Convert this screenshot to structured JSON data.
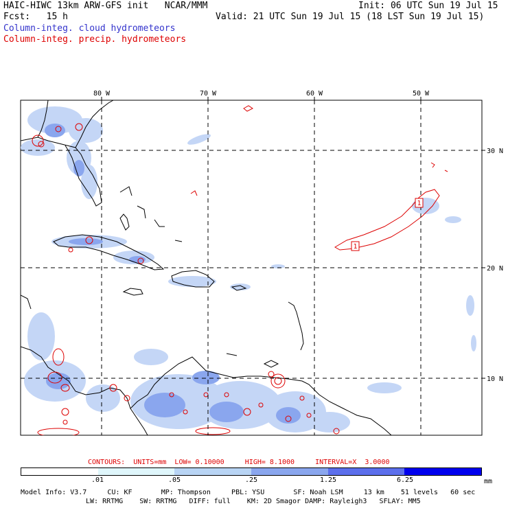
{
  "header": {
    "title": "HAIC-HIWC 13km ARW-GFS init   NCAR/MMM",
    "init": "Init: 06 UTC Sun 19 Jul 15",
    "fcst": "Fcst:   15 h",
    "valid": "Valid: 21 UTC Sun 19 Jul 15 (18 LST Sun 19 Jul 15)",
    "legend_cloud": "Column-integ. cloud hydrometeors",
    "legend_precip": "Column-integ. precip. hydrometeors",
    "cloud_color": "#3333cc",
    "precip_color": "#dd0000"
  },
  "map": {
    "lon_labels": [
      "80 W",
      "70 W",
      "60 W",
      "50 W"
    ],
    "lat_labels": [
      "30 N",
      "20 N",
      "10 N"
    ],
    "contour_labels": [
      "1",
      "1"
    ]
  },
  "contours_line": "CONTOURS:  UNITS=mm  LOW= 0.10000     HIGH= 8.1000     INTERVAL=X  3.0000",
  "colorbar": {
    "colors": [
      "#ffffff",
      "#dff6fb",
      "#b8d4f4",
      "#8aa6ee",
      "#5c6fec",
      "#0000ee"
    ],
    "labels": [
      ".01",
      ".05",
      ".25",
      "1.25",
      "6.25"
    ],
    "unit": "mm"
  },
  "footer": {
    "line1": "Model Info: V3.7     CU: KF       MP: Thompson     PBL: YSU       SF: Noah LSM     13 km    51 levels   60 sec",
    "line2": "LW: RRTMG    SW: RRTMG   DIFF: full    KM: 2D Smagor DAMP: Rayleigh3   SFLAY: MM5"
  }
}
